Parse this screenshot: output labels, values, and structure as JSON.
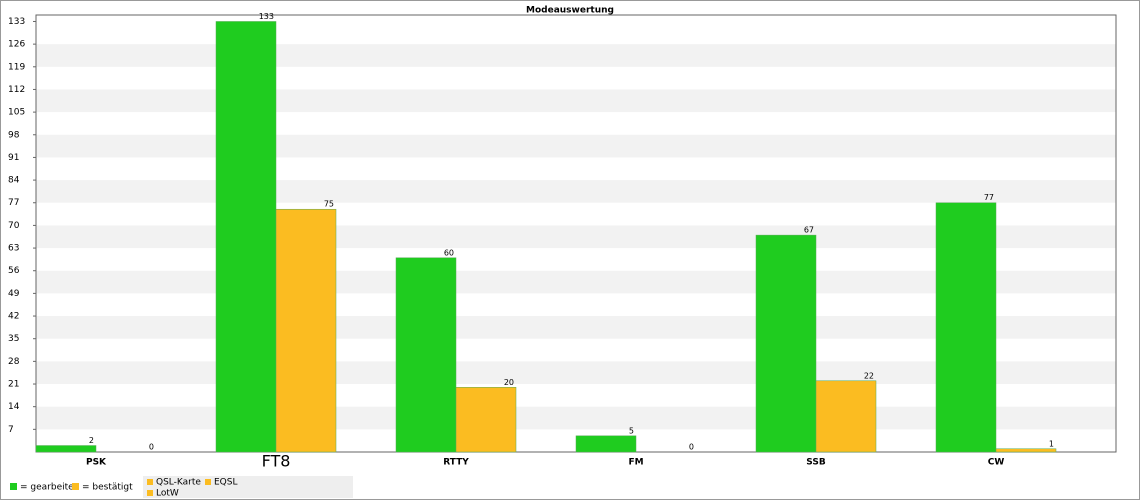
{
  "chart_data": {
    "type": "bar",
    "title": "Modeauswertung",
    "categories": [
      "PSK",
      "FT8",
      "RTTY",
      "FM",
      "SSB",
      "CW"
    ],
    "series": [
      {
        "name": "= gearbeitet",
        "color": "#1fcc1f",
        "values": [
          2,
          133,
          60,
          5,
          67,
          77
        ]
      },
      {
        "name": "= bestätigt",
        "color": "#fbbc21",
        "values": [
          0,
          75,
          20,
          0,
          22,
          1
        ]
      }
    ],
    "confirm_types": [
      {
        "name": "QSL-Karte",
        "color": "#fbbc21"
      },
      {
        "name": "EQSL",
        "color": "#fbbc21"
      },
      {
        "name": "LotW",
        "color": "#fbbc21"
      }
    ],
    "ylim": [
      0,
      135
    ],
    "yticks": [
      7,
      14,
      21,
      28,
      35,
      42,
      49,
      56,
      63,
      70,
      77,
      84,
      91,
      98,
      105,
      112,
      119,
      126,
      133
    ],
    "grid": true
  }
}
